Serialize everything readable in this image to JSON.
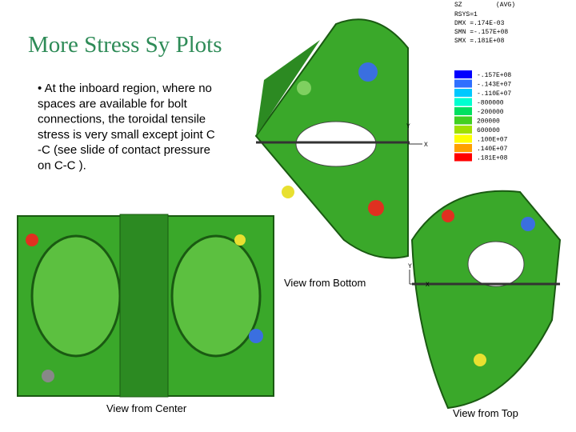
{
  "slide": {
    "title": "More Stress Sy Plots",
    "bullet_lines": [
      "• At the inboard region, where no",
      "spaces are available for bolt",
      "connections, the toroidal tensile",
      "stress is very small except joint C",
      "-C (see slide of contact pressure",
      "on C-C )."
    ],
    "captions": {
      "bottom": "View from Bottom",
      "center": "View from Center",
      "top": "View from Top"
    },
    "legend": {
      "header": [
        "SZ",
        "(AVG)"
      ],
      "info": [
        "RSYS=1",
        "DMX =.174E-03",
        "SMN =-.157E+08",
        "SMX =.181E+08"
      ],
      "entries": [
        {
          "label": "-.157E+08",
          "color": "#0000ff"
        },
        {
          "label": "-.143E+07",
          "color": "#2f6fff"
        },
        {
          "label": "-.110E+07",
          "color": "#00c8ff"
        },
        {
          "label": "-800000",
          "color": "#00ffd0"
        },
        {
          "label": "-200000",
          "color": "#00e060"
        },
        {
          "label": "200000",
          "color": "#40d020"
        },
        {
          "label": "600000",
          "color": "#a0e000"
        },
        {
          "label": ".100E+07",
          "color": "#ffff00"
        },
        {
          "label": ".140E+07",
          "color": "#ffa000"
        },
        {
          "label": ".181E+08",
          "color": "#ff0000"
        }
      ]
    },
    "triads": [
      {
        "y": "Y",
        "x": "X"
      },
      {
        "y": "Y",
        "x": "X"
      }
    ]
  }
}
